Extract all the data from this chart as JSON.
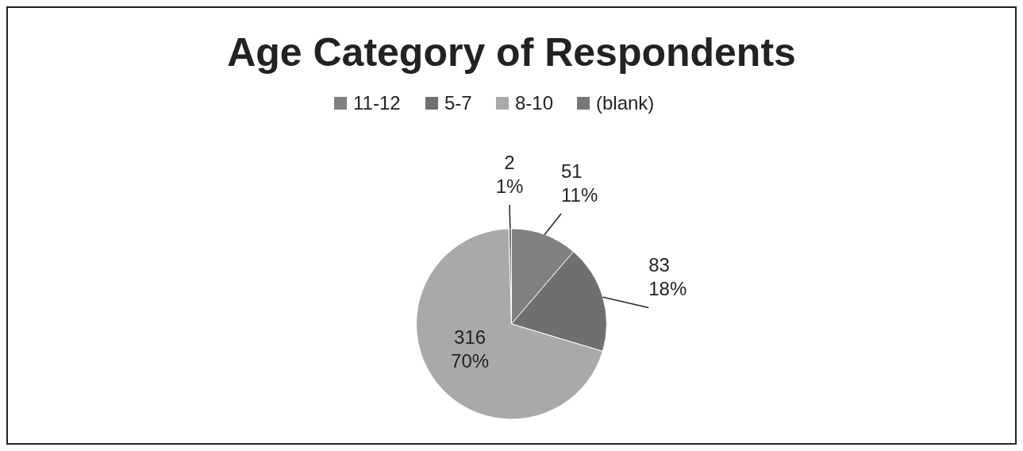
{
  "chart_data": {
    "type": "pie",
    "title": "Age Category of Respondents",
    "categories": [
      "11-12",
      "5-7",
      "8-10",
      "(blank)"
    ],
    "values": [
      51,
      83,
      316,
      2
    ],
    "colors": [
      "#808080",
      "#6f6f6f",
      "#a9a9a9",
      "#777777"
    ],
    "value_labels": [
      "51\n11%",
      "83\n18%",
      "316\n70%",
      "2\n1%"
    ],
    "legend": "top"
  }
}
